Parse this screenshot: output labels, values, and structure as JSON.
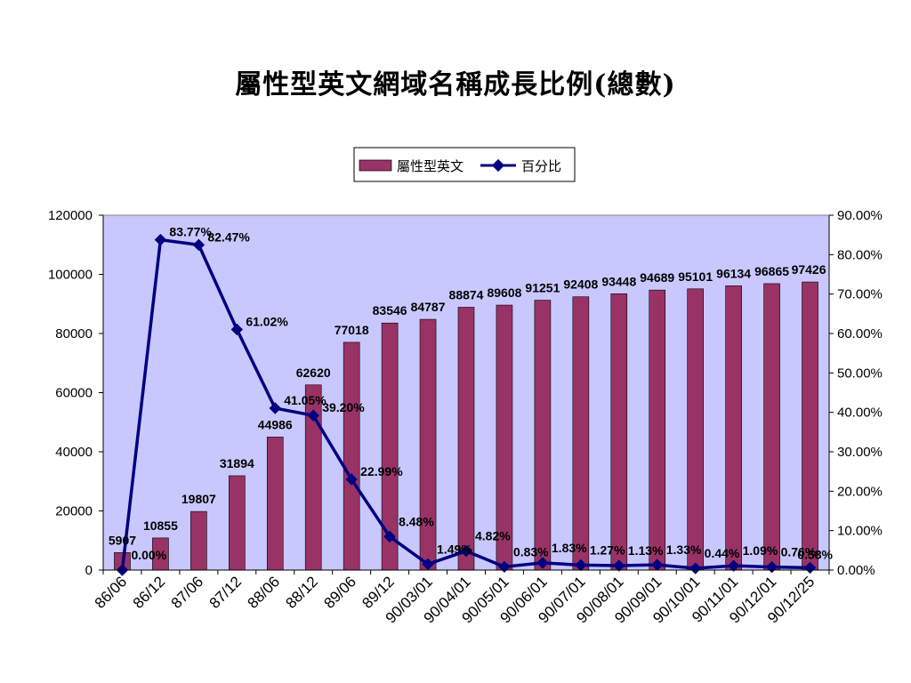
{
  "title": "屬性型英文網域名稱成長比例(總數)",
  "legend": {
    "bar_label": "屬性型英文",
    "line_label": "百分比"
  },
  "colors": {
    "plot_bg": "#c8c8ff",
    "bar": "#993366",
    "line": "#000080"
  },
  "chart_data": {
    "type": "bar",
    "categories": [
      "86/06",
      "86/12",
      "87/06",
      "87/12",
      "88/06",
      "88/12",
      "89/06",
      "89/12",
      "90/03/01",
      "90/04/01",
      "90/05/01",
      "90/06/01",
      "90/07/01",
      "90/08/01",
      "90/09/01",
      "90/10/01",
      "90/11/01",
      "90/12/01",
      "90/12/25"
    ],
    "series": [
      {
        "name": "屬性型英文",
        "type": "bar",
        "axis": "left",
        "values": [
          5907,
          10855,
          19807,
          31894,
          44986,
          62620,
          77018,
          83546,
          84787,
          88874,
          89608,
          91251,
          92408,
          93448,
          94689,
          95101,
          96134,
          96865,
          97426
        ]
      },
      {
        "name": "百分比",
        "type": "line",
        "axis": "right",
        "values": [
          0.0,
          83.77,
          82.47,
          61.02,
          41.05,
          39.2,
          22.99,
          8.48,
          1.49,
          4.82,
          0.83,
          1.83,
          1.27,
          1.13,
          1.33,
          0.44,
          1.09,
          0.76,
          0.58
        ]
      }
    ],
    "bar_labels": [
      "5907",
      "10855",
      "19807",
      "31894",
      "44986",
      "62620",
      "77018",
      "83546",
      "84787",
      "88874",
      "89608",
      "91251",
      "92408",
      "93448",
      "94689",
      "95101",
      "96134",
      "96865",
      "97426"
    ],
    "line_labels": [
      "0.00%",
      "83.77%",
      "82.47%",
      "61.02%",
      "41.05%",
      "39.20%",
      "22.99%",
      "8.48%",
      "1.49%",
      "4.82%",
      "0.83%",
      "1.83%",
      "1.27%",
      "1.13%",
      "1.33%",
      "0.44%",
      "1.09%",
      "0.76%",
      "0.58%"
    ],
    "y_left": {
      "min": 0,
      "max": 120000,
      "ticks": [
        "0",
        "20000",
        "40000",
        "60000",
        "80000",
        "100000",
        "120000"
      ]
    },
    "y_right": {
      "min": 0,
      "max": 90,
      "ticks": [
        "0.00%",
        "10.00%",
        "20.00%",
        "30.00%",
        "40.00%",
        "50.00%",
        "60.00%",
        "70.00%",
        "80.00%",
        "90.00%"
      ]
    },
    "grid": false,
    "legend_position": "top-center"
  }
}
